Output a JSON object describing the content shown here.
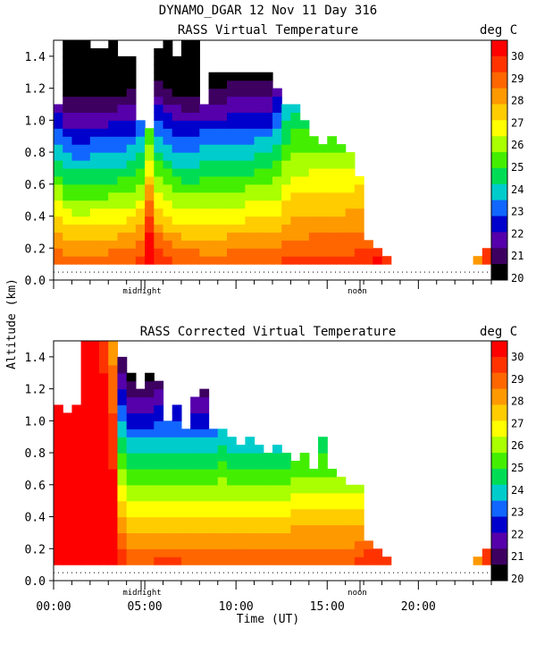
{
  "header": {
    "title": "DYNAMO_DGAR  12 Nov 11 Day 316"
  },
  "shared": {
    "ylabel": "Altitude (km)",
    "xlabel": "Time (UT)",
    "xticks": [
      "00:00",
      "05:00",
      "10:00",
      "15:00",
      "20:00"
    ],
    "xtick_values": [
      0,
      5,
      10,
      15,
      20
    ],
    "yticks": [
      "0.0",
      "0.2",
      "0.4",
      "0.6",
      "0.8",
      "1.0",
      "1.2",
      "1.4"
    ],
    "ytick_values": [
      0,
      0.2,
      0.4,
      0.6,
      0.8,
      1.0,
      1.2,
      1.4
    ],
    "midnight_label": "midnight",
    "noon_label": "noon",
    "unit_label": "deg C",
    "colorbar_ticks": [
      "30",
      "29",
      "28",
      "27",
      "26",
      "25",
      "24",
      "23",
      "22",
      "21",
      "20"
    ],
    "colorbar_colors": [
      "#ff0000",
      "#ff3300",
      "#ff6600",
      "#ff9900",
      "#ffcc00",
      "#ffff00",
      "#aaff00",
      "#44ee00",
      "#00dd55",
      "#00cccc",
      "#1166ff",
      "#0000cc",
      "#5500aa",
      "#3d0060",
      "#000000"
    ]
  },
  "chart_data": [
    {
      "type": "heatmap",
      "title": "RASS Virtual Temperature",
      "xlabel": "Time (UT)",
      "ylabel": "Altitude (km)",
      "xlim": [
        0,
        24
      ],
      "ylim": [
        0,
        1.5
      ],
      "value_range": [
        20,
        30
      ],
      "unit": "deg C",
      "time_marks": {
        "midnight": 4.8,
        "noon": 16.8
      },
      "columns": [
        {
          "t": 0.0,
          "top": 1.1,
          "surf": 28.5,
          "lapse": 7.0
        },
        {
          "t": 0.5,
          "top": 1.5,
          "surf": 28.3,
          "lapse": 7.5
        },
        {
          "t": 1.0,
          "top": 1.5,
          "surf": 28.2,
          "lapse": 7.5
        },
        {
          "t": 1.5,
          "top": 1.5,
          "surf": 28.2,
          "lapse": 7.5
        },
        {
          "t": 2.0,
          "top": 1.45,
          "surf": 28.3,
          "lapse": 7.5
        },
        {
          "t": 2.5,
          "top": 1.45,
          "surf": 28.3,
          "lapse": 7.5
        },
        {
          "t": 3.0,
          "top": 1.5,
          "surf": 28.4,
          "lapse": 7.5
        },
        {
          "t": 3.5,
          "top": 1.4,
          "surf": 28.5,
          "lapse": 7.5
        },
        {
          "t": 4.0,
          "top": 1.4,
          "surf": 28.6,
          "lapse": 7.5
        },
        {
          "t": 4.5,
          "top": 1.0,
          "surf": 28.8,
          "lapse": 7.0
        },
        {
          "t": 5.0,
          "top": 0.95,
          "surf": 30.5,
          "lapse": 7.0
        },
        {
          "t": 5.5,
          "top": 1.45,
          "surf": 29.2,
          "lapse": 7.5
        },
        {
          "t": 6.0,
          "top": 1.5,
          "surf": 28.8,
          "lapse": 7.5
        },
        {
          "t": 6.5,
          "top": 1.4,
          "surf": 28.5,
          "lapse": 7.5
        },
        {
          "t": 7.0,
          "top": 1.5,
          "surf": 28.4,
          "lapse": 7.5
        },
        {
          "t": 7.5,
          "top": 1.5,
          "surf": 28.4,
          "lapse": 7.5
        },
        {
          "t": 8.0,
          "top": 1.1,
          "surf": 28.3,
          "lapse": 7.0
        },
        {
          "t": 8.5,
          "top": 1.3,
          "surf": 28.3,
          "lapse": 7.0
        },
        {
          "t": 9.0,
          "top": 1.3,
          "surf": 28.3,
          "lapse": 7.0
        },
        {
          "t": 9.5,
          "top": 1.3,
          "surf": 28.4,
          "lapse": 7.0
        },
        {
          "t": 10.0,
          "top": 1.3,
          "surf": 28.4,
          "lapse": 7.0
        },
        {
          "t": 10.5,
          "top": 1.3,
          "surf": 28.5,
          "lapse": 7.0
        },
        {
          "t": 11.0,
          "top": 1.3,
          "surf": 28.6,
          "lapse": 7.0
        },
        {
          "t": 11.5,
          "top": 1.3,
          "surf": 28.6,
          "lapse": 7.0
        },
        {
          "t": 12.0,
          "top": 1.2,
          "surf": 28.6,
          "lapse": 6.5
        },
        {
          "t": 12.5,
          "top": 1.1,
          "surf": 28.7,
          "lapse": 5.5
        },
        {
          "t": 13.0,
          "top": 1.1,
          "surf": 28.7,
          "lapse": 5.0
        },
        {
          "t": 13.5,
          "top": 1.0,
          "surf": 28.7,
          "lapse": 5.0
        },
        {
          "t": 14.0,
          "top": 0.9,
          "surf": 28.8,
          "lapse": 5.0
        },
        {
          "t": 14.5,
          "top": 0.85,
          "surf": 28.8,
          "lapse": 5.0
        },
        {
          "t": 15.0,
          "top": 0.9,
          "surf": 28.8,
          "lapse": 5.0
        },
        {
          "t": 15.5,
          "top": 0.85,
          "surf": 28.8,
          "lapse": 5.0
        },
        {
          "t": 16.0,
          "top": 0.8,
          "surf": 28.9,
          "lapse": 5.0
        },
        {
          "t": 16.5,
          "top": 0.65,
          "surf": 29.0,
          "lapse": 5.0
        },
        {
          "t": 17.0,
          "top": 0.25,
          "surf": 29.0,
          "lapse": 5.0
        },
        {
          "t": 17.5,
          "top": 0.18,
          "surf": 29.5,
          "lapse": 5.0
        },
        {
          "t": 18.0,
          "top": 0.15,
          "surf": 29.3,
          "lapse": 5.0
        },
        {
          "t": 18.5,
          "top": null
        },
        {
          "t": 19.0,
          "top": null
        },
        {
          "t": 19.5,
          "top": null
        },
        {
          "t": 20.0,
          "top": null
        },
        {
          "t": 20.5,
          "top": null
        },
        {
          "t": 21.0,
          "top": null
        },
        {
          "t": 21.5,
          "top": null
        },
        {
          "t": 22.0,
          "top": null
        },
        {
          "t": 22.5,
          "top": null
        },
        {
          "t": 23.0,
          "top": 0.15,
          "surf": 28.0,
          "lapse": 5.0
        },
        {
          "t": 23.5,
          "top": 0.2,
          "surf": 29.0,
          "lapse": 5.0
        },
        {
          "t": 24.0,
          "top": null
        }
      ]
    },
    {
      "type": "heatmap",
      "title": "RASS Corrected Virtual Temperature",
      "xlabel": "Time (UT)",
      "ylabel": "Altitude (km)",
      "xlim": [
        0,
        24
      ],
      "ylim": [
        0,
        1.5
      ],
      "value_range": [
        20,
        30
      ],
      "unit": "deg C",
      "time_marks": {
        "midnight": 4.8,
        "noon": 16.8
      },
      "columns": [
        {
          "t": 0.0,
          "top": 1.1,
          "surf": 30.5,
          "lapse": 0.5
        },
        {
          "t": 0.5,
          "top": 1.05,
          "surf": 30.5,
          "lapse": 0.5
        },
        {
          "t": 1.0,
          "top": 1.1,
          "surf": 30.5,
          "lapse": 0.5
        },
        {
          "t": 1.5,
          "top": 1.5,
          "surf": 30.5,
          "lapse": 0.5
        },
        {
          "t": 2.0,
          "top": 1.5,
          "surf": 30.5,
          "lapse": 0.5
        },
        {
          "t": 2.5,
          "top": 1.5,
          "surf": 30.5,
          "lapse": 1.0
        },
        {
          "t": 3.0,
          "top": 1.5,
          "surf": 30.5,
          "lapse": 2.0
        },
        {
          "t": 3.5,
          "top": 1.4,
          "surf": 29.0,
          "lapse": 6.5
        },
        {
          "t": 4.0,
          "top": 1.3,
          "surf": 28.6,
          "lapse": 7.0
        },
        {
          "t": 4.5,
          "top": 1.2,
          "surf": 28.6,
          "lapse": 7.0
        },
        {
          "t": 5.0,
          "top": 1.3,
          "surf": 28.6,
          "lapse": 7.0
        },
        {
          "t": 5.5,
          "top": 1.25,
          "surf": 28.7,
          "lapse": 7.0
        },
        {
          "t": 6.0,
          "top": 1.0,
          "surf": 28.7,
          "lapse": 7.0
        },
        {
          "t": 6.5,
          "top": 1.1,
          "surf": 28.7,
          "lapse": 7.0
        },
        {
          "t": 7.0,
          "top": 0.95,
          "surf": 28.6,
          "lapse": 7.0
        },
        {
          "t": 7.5,
          "top": 1.15,
          "surf": 28.6,
          "lapse": 7.0
        },
        {
          "t": 8.0,
          "top": 1.2,
          "surf": 28.6,
          "lapse": 7.0
        },
        {
          "t": 8.5,
          "top": 0.95,
          "surf": 28.6,
          "lapse": 7.0
        },
        {
          "t": 9.0,
          "top": 0.95,
          "surf": 28.6,
          "lapse": 6.5
        },
        {
          "t": 9.5,
          "top": 0.9,
          "surf": 28.5,
          "lapse": 6.5
        },
        {
          "t": 10.0,
          "top": 0.85,
          "surf": 28.5,
          "lapse": 6.5
        },
        {
          "t": 10.5,
          "top": 0.9,
          "surf": 28.5,
          "lapse": 6.5
        },
        {
          "t": 11.0,
          "top": 0.85,
          "surf": 28.5,
          "lapse": 6.5
        },
        {
          "t": 11.5,
          "top": 0.8,
          "surf": 28.5,
          "lapse": 6.5
        },
        {
          "t": 12.0,
          "top": 0.85,
          "surf": 28.5,
          "lapse": 6.5
        },
        {
          "t": 12.5,
          "top": 0.8,
          "surf": 28.5,
          "lapse": 6.5
        },
        {
          "t": 13.0,
          "top": 0.75,
          "surf": 28.6,
          "lapse": 6.0
        },
        {
          "t": 13.5,
          "top": 0.8,
          "surf": 28.6,
          "lapse": 6.0
        },
        {
          "t": 14.0,
          "top": 0.7,
          "surf": 28.6,
          "lapse": 6.0
        },
        {
          "t": 14.5,
          "top": 0.9,
          "surf": 28.6,
          "lapse": 6.0
        },
        {
          "t": 15.0,
          "top": 0.7,
          "surf": 28.6,
          "lapse": 6.0
        },
        {
          "t": 15.5,
          "top": 0.65,
          "surf": 28.6,
          "lapse": 6.0
        },
        {
          "t": 16.0,
          "top": 0.6,
          "surf": 28.6,
          "lapse": 6.0
        },
        {
          "t": 16.5,
          "top": 0.6,
          "surf": 28.7,
          "lapse": 6.0
        },
        {
          "t": 17.0,
          "top": 0.25,
          "surf": 29.0,
          "lapse": 5.0
        },
        {
          "t": 17.5,
          "top": 0.2,
          "surf": 29.3,
          "lapse": 5.0
        },
        {
          "t": 18.0,
          "top": 0.15,
          "surf": 29.0,
          "lapse": 5.0
        },
        {
          "t": 18.5,
          "top": null
        },
        {
          "t": 19.0,
          "top": null
        },
        {
          "t": 19.5,
          "top": null
        },
        {
          "t": 20.0,
          "top": null
        },
        {
          "t": 20.5,
          "top": null
        },
        {
          "t": 21.0,
          "top": null
        },
        {
          "t": 21.5,
          "top": null
        },
        {
          "t": 22.0,
          "top": null
        },
        {
          "t": 22.5,
          "top": null
        },
        {
          "t": 23.0,
          "top": 0.15,
          "surf": 28.0,
          "lapse": 5.0
        },
        {
          "t": 23.5,
          "top": 0.2,
          "surf": 29.0,
          "lapse": 5.0
        },
        {
          "t": 24.0,
          "top": null
        }
      ]
    }
  ]
}
